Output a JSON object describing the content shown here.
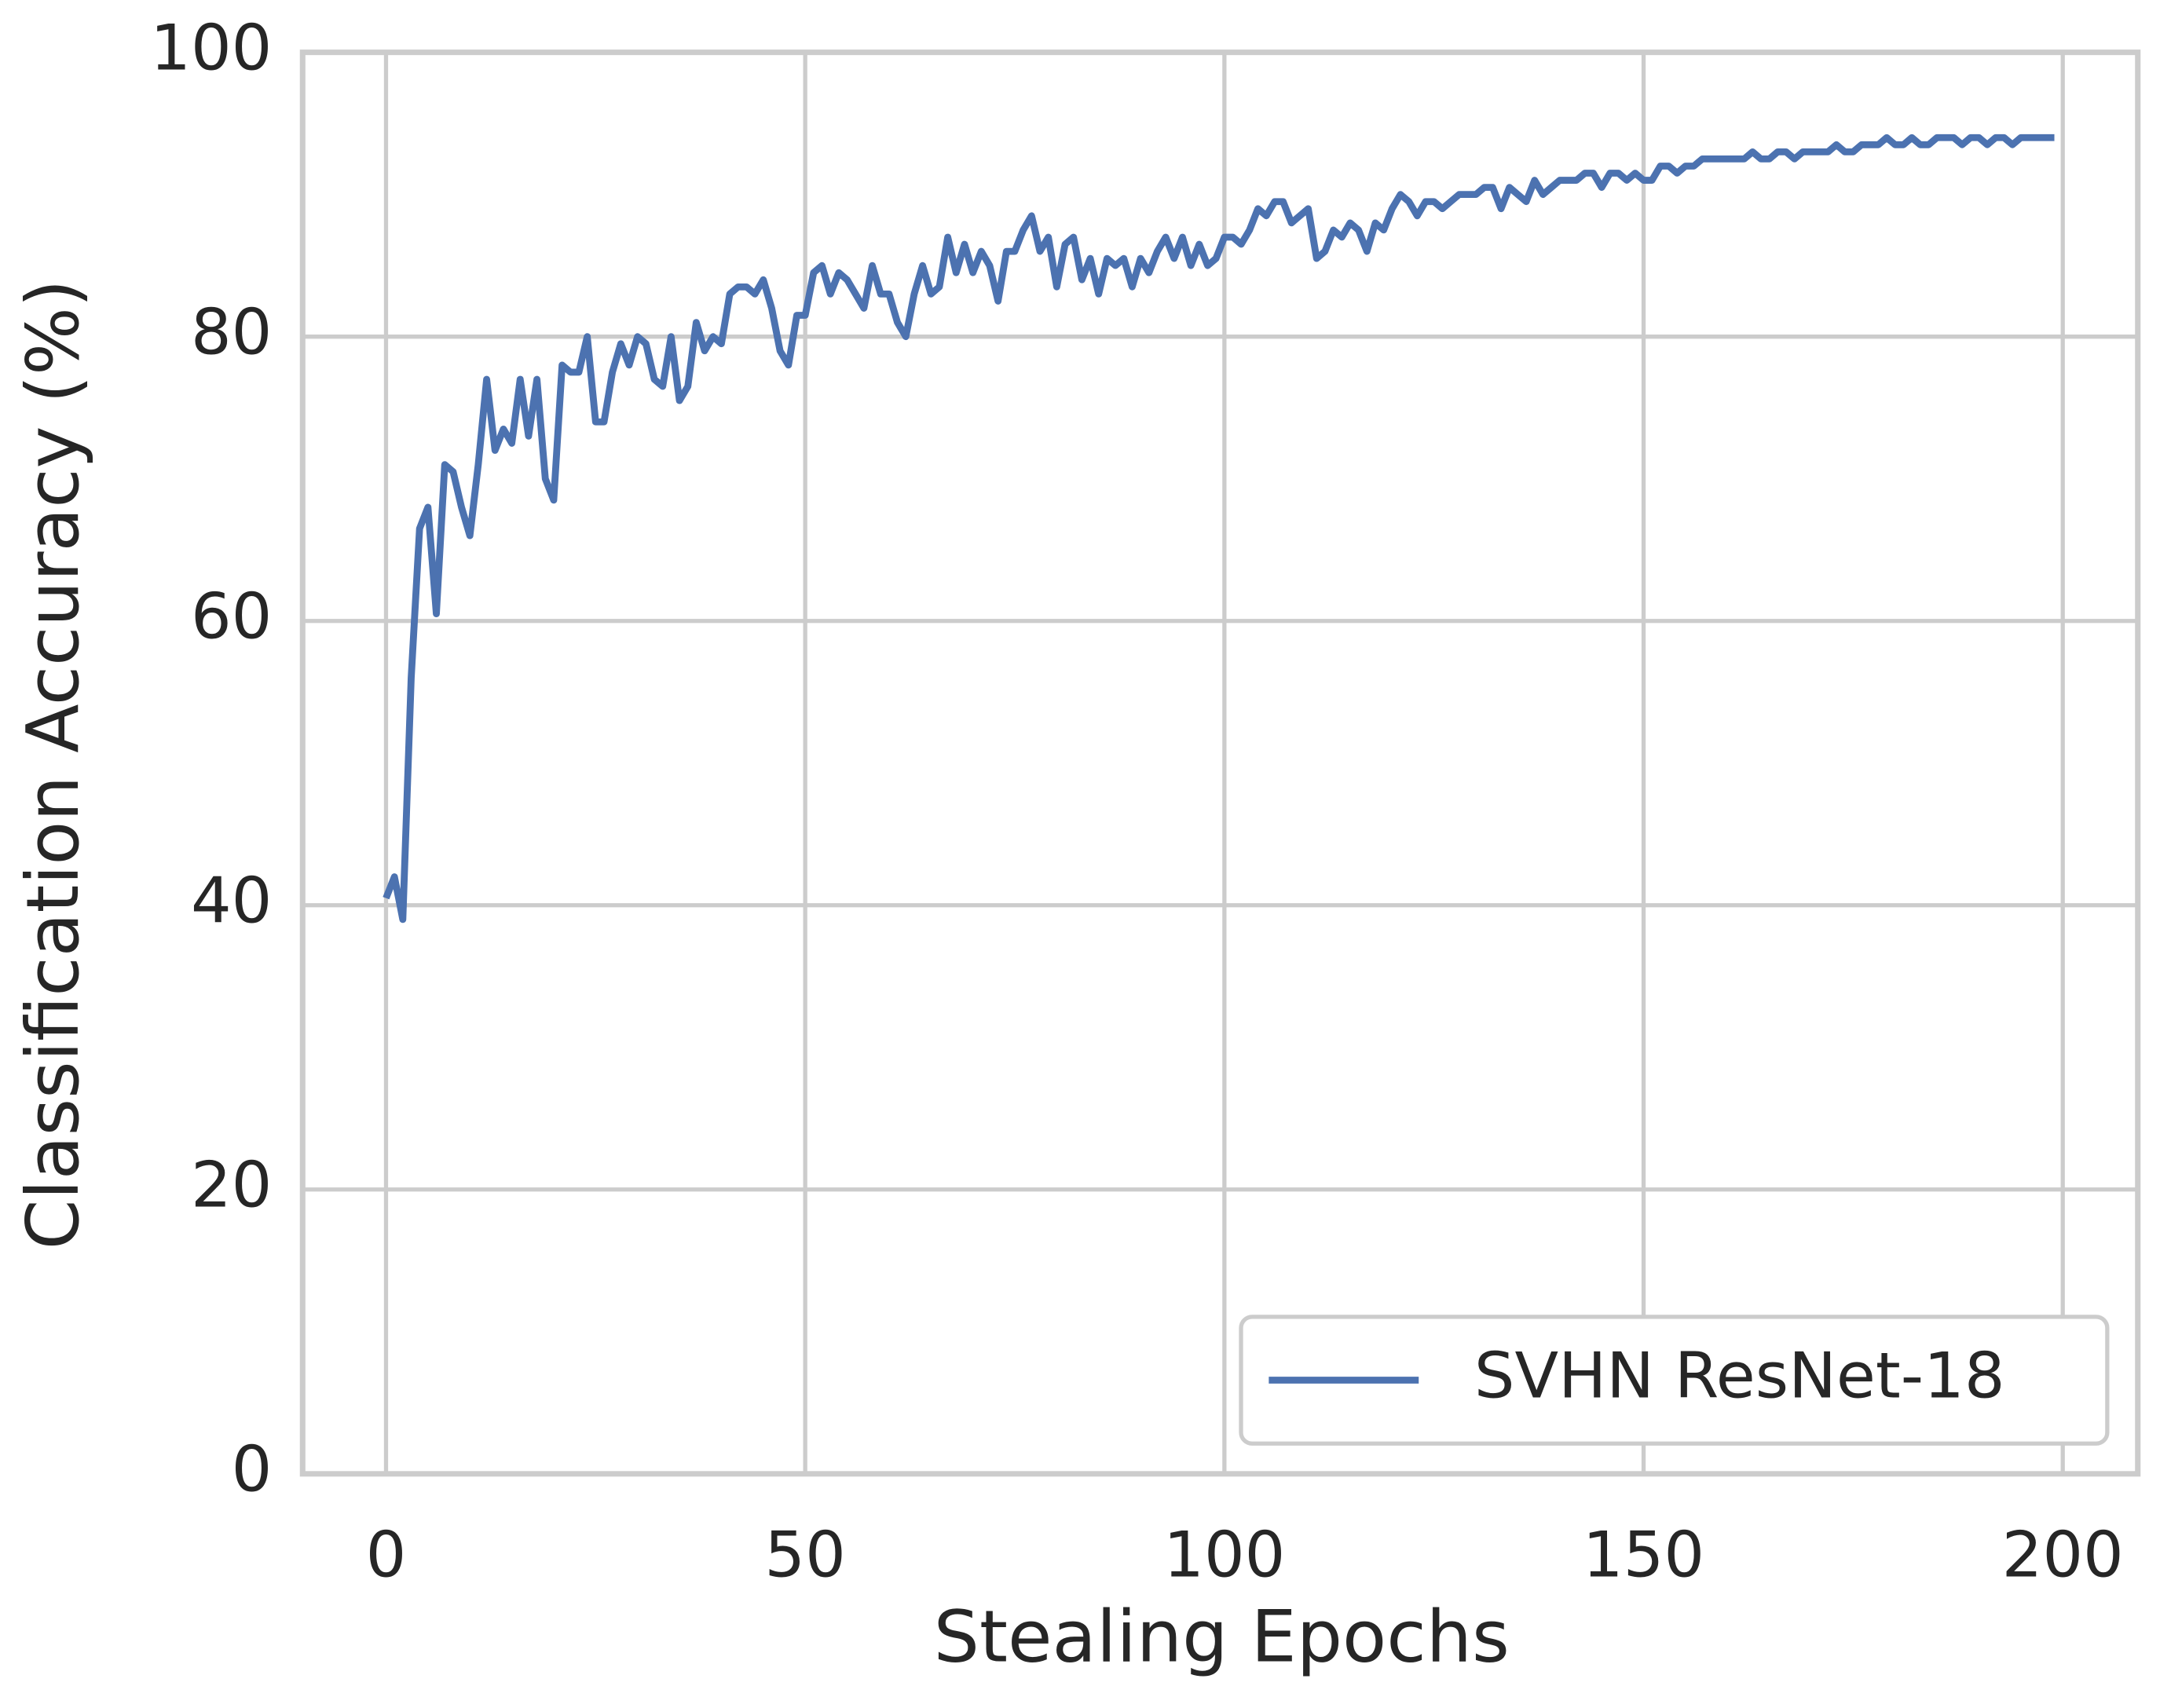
{
  "chart_data": {
    "type": "line",
    "xlabel": "Stealing Epochs",
    "ylabel": "Classification Accuracy (%)",
    "x": [
      0,
      1,
      2,
      3,
      4,
      5,
      6,
      7,
      8,
      9,
      10,
      11,
      12,
      13,
      14,
      15,
      16,
      17,
      18,
      19,
      20,
      21,
      22,
      23,
      24,
      25,
      26,
      27,
      28,
      29,
      30,
      31,
      32,
      33,
      34,
      35,
      36,
      37,
      38,
      39,
      40,
      41,
      42,
      43,
      44,
      45,
      46,
      47,
      48,
      49,
      50,
      51,
      52,
      53,
      54,
      55,
      56,
      57,
      58,
      59,
      60,
      61,
      62,
      63,
      64,
      65,
      66,
      67,
      68,
      69,
      70,
      71,
      72,
      73,
      74,
      75,
      76,
      77,
      78,
      79,
      80,
      81,
      82,
      83,
      84,
      85,
      86,
      87,
      88,
      89,
      90,
      91,
      92,
      93,
      94,
      95,
      96,
      97,
      98,
      99,
      100,
      101,
      102,
      103,
      104,
      105,
      106,
      107,
      108,
      109,
      110,
      111,
      112,
      113,
      114,
      115,
      116,
      117,
      118,
      119,
      120,
      121,
      122,
      123,
      124,
      125,
      126,
      127,
      128,
      129,
      130,
      131,
      132,
      133,
      134,
      135,
      136,
      137,
      138,
      139,
      140,
      141,
      142,
      143,
      144,
      145,
      146,
      147,
      148,
      149,
      150,
      151,
      152,
      153,
      154,
      155,
      156,
      157,
      158,
      159,
      160,
      161,
      162,
      163,
      164,
      165,
      166,
      167,
      168,
      169,
      170,
      171,
      172,
      173,
      174,
      175,
      176,
      177,
      178,
      179,
      180,
      181,
      182,
      183,
      184,
      185,
      186,
      187,
      188,
      189,
      190,
      191,
      192,
      193,
      194,
      195,
      196,
      197,
      198,
      199
    ],
    "series": [
      {
        "name": "SVHN ResNet-18",
        "color": "#4c72b0",
        "values": [
          40.5,
          42,
          39,
          56,
          66.5,
          68,
          60.5,
          71,
          70.5,
          68,
          66,
          71,
          77,
          72,
          73.5,
          72.5,
          77,
          73,
          77,
          70,
          68.5,
          78,
          77.5,
          77.5,
          80,
          74,
          74,
          77.5,
          79.5,
          78,
          80,
          79.5,
          77,
          76.5,
          80,
          75.5,
          76.5,
          81,
          79,
          80,
          79.5,
          83,
          83.5,
          83.5,
          83,
          84,
          82,
          79,
          78,
          81.5,
          81.5,
          84.5,
          85,
          83,
          84.5,
          84,
          83,
          82,
          85,
          83,
          83,
          81,
          80,
          83,
          85,
          83,
          83.5,
          87,
          84.5,
          86.5,
          84.5,
          86,
          85,
          82.5,
          86,
          86,
          87.5,
          88.5,
          86,
          87,
          83.5,
          86.5,
          87,
          84,
          85.5,
          83,
          85.5,
          85,
          85.5,
          83.5,
          85.5,
          84.5,
          86,
          87,
          85.5,
          87,
          85,
          86.5,
          85,
          85.5,
          87,
          87,
          86.5,
          87.5,
          89,
          88.5,
          89.5,
          89.5,
          88,
          88.5,
          89,
          85.5,
          86,
          87.5,
          87,
          88,
          87.5,
          86,
          88,
          87.5,
          89,
          90,
          89.5,
          88.5,
          89.5,
          89.5,
          89,
          89.5,
          90,
          90,
          90,
          90.5,
          90.5,
          89,
          90.5,
          90,
          89.5,
          91,
          90,
          90.5,
          91,
          91,
          91,
          91.5,
          91.5,
          90.5,
          91.5,
          91.5,
          91,
          91.5,
          91,
          91,
          92,
          92,
          91.5,
          92,
          92,
          92.5,
          92.5,
          92.5,
          92.5,
          92.5,
          92.5,
          93,
          92.5,
          92.5,
          93,
          93,
          92.5,
          93,
          93,
          93,
          93,
          93.5,
          93,
          93,
          93.5,
          93.5,
          93.5,
          94,
          93.5,
          93.5,
          94,
          93.5,
          93.5,
          94,
          94,
          94,
          93.5,
          94,
          94,
          93.5,
          94,
          94,
          93.5,
          94,
          94,
          94,
          94,
          94
        ]
      }
    ],
    "xlim": [
      -9.95,
      208.95
    ],
    "ylim": [
      0,
      100
    ],
    "xticks": [
      0,
      50,
      100,
      150,
      200
    ],
    "yticks": [
      0,
      20,
      40,
      60,
      80,
      100
    ],
    "grid": true,
    "legend": "lower right"
  }
}
